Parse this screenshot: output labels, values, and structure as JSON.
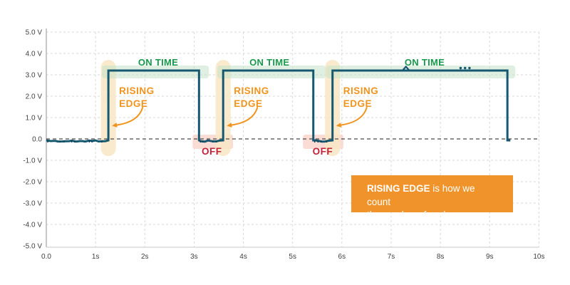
{
  "chart_data": {
    "type": "line",
    "title": "",
    "xlabel": "",
    "ylabel": "",
    "x_unit": "seconds",
    "y_unit": "volts",
    "xlim": [
      0,
      10
    ],
    "ylim": [
      -5,
      5
    ],
    "grid": true,
    "x_ticks": [
      {
        "t": 0,
        "label": "0.0"
      },
      {
        "t": 1,
        "label": "1s"
      },
      {
        "t": 2,
        "label": "2s"
      },
      {
        "t": 3,
        "label": "3s"
      },
      {
        "t": 4,
        "label": "4s"
      },
      {
        "t": 5,
        "label": "5s"
      },
      {
        "t": 6,
        "label": "6s"
      },
      {
        "t": 7,
        "label": "7s"
      },
      {
        "t": 8,
        "label": "8s"
      },
      {
        "t": 9,
        "label": "9s"
      },
      {
        "t": 10,
        "label": "10s"
      }
    ],
    "y_ticks": [
      {
        "v": 5,
        "label": "5.0 V"
      },
      {
        "v": 4,
        "label": "4.0 V"
      },
      {
        "v": 3,
        "label": "3.0 V"
      },
      {
        "v": 2,
        "label": "2.0 V"
      },
      {
        "v": 1,
        "label": "1.0 V"
      },
      {
        "v": 0,
        "label": "0.0"
      },
      {
        "v": -1,
        "label": "-1.0 V"
      },
      {
        "v": -2,
        "label": "-2.0 V"
      },
      {
        "v": -3,
        "label": "-3.0 V"
      },
      {
        "v": -4,
        "label": "-4.0 V"
      },
      {
        "v": -5,
        "label": "-5.0 V"
      }
    ],
    "signal": {
      "name": "square-wave",
      "high_voltage": 3.2,
      "low_voltage": 0,
      "start_time": 0,
      "pulses": [
        {
          "rise": 1.26,
          "fall": 3.1
        },
        {
          "rise": 3.59,
          "fall": 5.42
        },
        {
          "rise": 5.81,
          "fall": 9.36
        }
      ],
      "end_stub": 0.06,
      "glitch_marks": {
        "caret_t": 7.3,
        "dots_t": [
          8.41,
          8.5,
          8.59
        ]
      }
    }
  },
  "annotations": {
    "on_time": {
      "label": "ON TIME",
      "text_color": "#169a4a",
      "band_color": "rgba(196,226,201,0.55)",
      "spans": [
        {
          "from": 1.13,
          "to": 3.3,
          "label_t": 2.27
        },
        {
          "from": 3.47,
          "to": 5.67,
          "label_t": 4.53
        },
        {
          "from": 5.68,
          "to": 9.52,
          "label_t": 7.68
        }
      ]
    },
    "rising_edge": {
      "label_line1": "RISING",
      "label_line2": "EDGE",
      "text_color": "#f0941e",
      "band_color": "rgba(248,230,196,0.85)",
      "times": [
        1.26,
        3.59,
        5.81
      ]
    },
    "off": {
      "label": "OFF",
      "text_color": "#c2233b",
      "band_color": "rgba(250,214,205,0.85)",
      "spans": [
        {
          "from": 2.97,
          "to": 3.79,
          "label_t": 3.36
        },
        {
          "from": 5.21,
          "to": 6.03,
          "label_t": 5.61
        }
      ]
    },
    "callout": {
      "bold": "RISING EDGE",
      "rest": " is how we count",
      "line2": "the number of cycle.",
      "bg_color": "#f0932a",
      "text_color": "#ffffff"
    }
  },
  "colors": {
    "waveform": "#15586f",
    "noise": "#0e4258",
    "grid": "#d9d9d9",
    "zero_line": "#4a4a4a",
    "y_axis": "#a7a9ac",
    "x_axis": "#d1d3d4",
    "tick_text": "#414042",
    "background": "#ffffff"
  }
}
